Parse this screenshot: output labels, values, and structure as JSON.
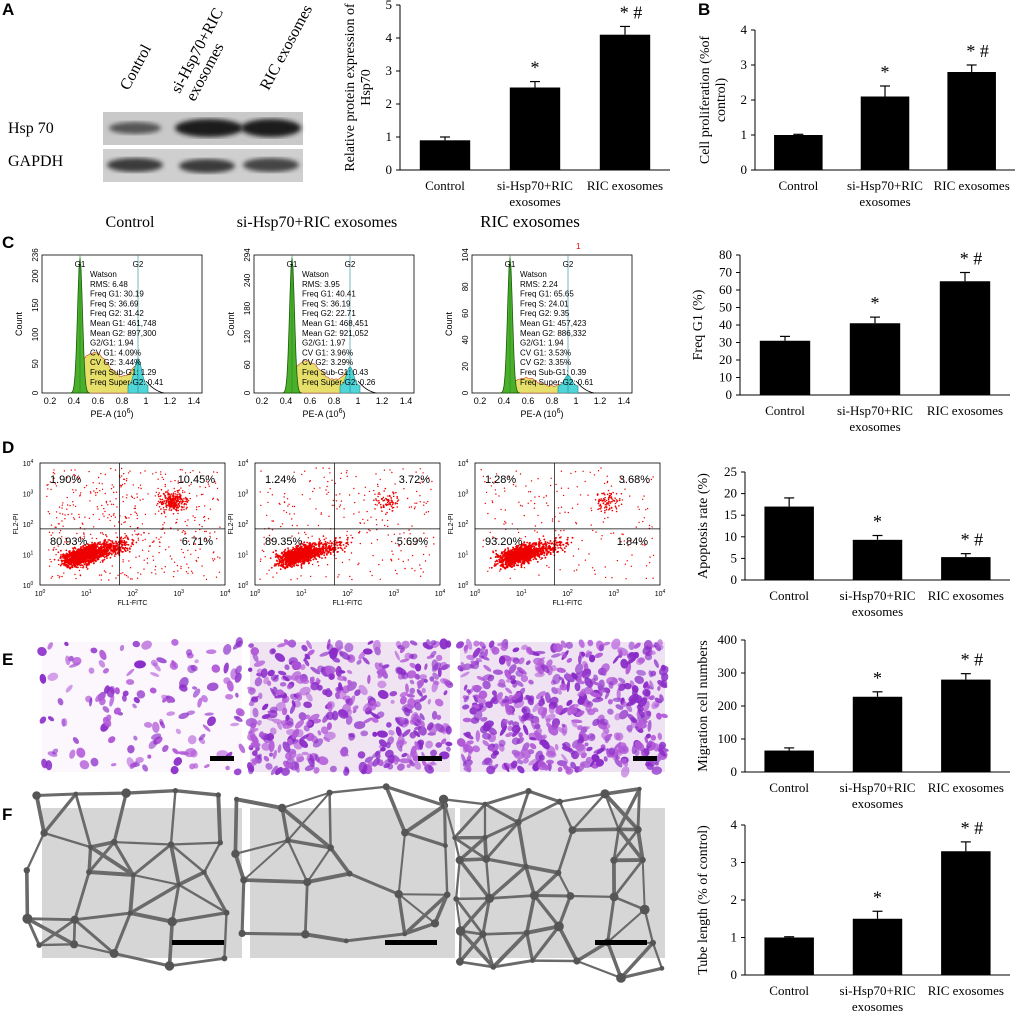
{
  "panels": {
    "A": "A",
    "B": "B",
    "C": "C",
    "D": "D",
    "E": "E",
    "F": "F"
  },
  "groups": [
    "Control",
    "si-Hsp70+RIC exosomes",
    "RIC exosomes"
  ],
  "western_blot": {
    "columns": [
      "Control",
      "si-Hsp70+RIC\nexosomes",
      "RIC exosomes"
    ],
    "rows": [
      "Hsp 70",
      "GAPDH"
    ]
  },
  "flow_cell_cycle": [
    {
      "title": "Control",
      "ymax": "236",
      "yticks": [
        "0",
        "50",
        "100",
        "150",
        "200",
        "236"
      ],
      "peaks": [
        "G1",
        "G2"
      ],
      "stats": [
        "Watson",
        "RMS: 6.48",
        "Freq G1: 30.19",
        "Freq S: 36.69",
        "Freq G2: 31.42",
        "Mean G1: 461,748",
        "Mean G2: 897,300",
        "G2/G1: 1.94",
        "CV G1: 4.09%",
        "CV G2: 3.44%",
        "Freq Sub-G1: 1.29",
        "Freq Super-G2: 0.41"
      ]
    },
    {
      "title": "si-Hsp70+RIC exosomes",
      "ymax": "294",
      "yticks": [
        "0",
        "60",
        "120",
        "180",
        "240",
        "294"
      ],
      "peaks": [
        "G1",
        "G2"
      ],
      "stats": [
        "Watson",
        "RMS: 3.95",
        "Freq G1: 40.41",
        "Freq S: 36.19",
        "Freq G2: 22.71",
        "Mean G1: 468,451",
        "Mean G2: 921,052",
        "G2/G1: 1.97",
        "CV G1: 3.96%",
        "CV G2: 3.29%",
        "Freq Sub-G1: 0.43",
        "Freq Super-G2: 0.26"
      ]
    },
    {
      "title": "RIC exosomes",
      "ymax": "104",
      "yticks": [
        "0",
        "20",
        "40",
        "60",
        "80",
        "104"
      ],
      "peaks": [
        "G1",
        "G2"
      ],
      "marker": "1",
      "stats": [
        "Watson",
        "RMS: 2.24",
        "Freq G1: 65.65",
        "Freq S: 24.01",
        "Freq G2: 9.35",
        "Mean G1: 457,423",
        "Mean G2: 886,332",
        "G2/G1: 1.94",
        "CV G1: 3.53%",
        "CV G2: 3.35%",
        "Freq Sub-G1: 0.39",
        "Freq Super-G2: 0.61"
      ]
    }
  ],
  "flow_common": {
    "ylabel": "Count",
    "xlabel": "PE-A (10",
    "xlabel_exp": "6",
    "xlabel_end": ")",
    "xticks": [
      "0.2",
      "0.4",
      "0.6",
      "0.8",
      "1",
      "1.2",
      "1.4"
    ]
  },
  "apoptosis_plots": [
    {
      "ul": "1.90%",
      "ur": "10.45%",
      "ll": "80.93%",
      "lr": "6.71%"
    },
    {
      "ul": "1.24%",
      "ur": "3.72%",
      "ll": "89.35%",
      "lr": "5.69%"
    },
    {
      "ul": "1.28%",
      "ur": "3.68%",
      "ll": "93.20%",
      "lr": "1.84%"
    }
  ],
  "apoptosis_common": {
    "ylabel": "FL2-PI",
    "xlabel": "FL1-FITC",
    "ticks": [
      "10",
      "10",
      "10",
      "10",
      "10"
    ],
    "exps": [
      "0",
      "1",
      "2",
      "3",
      "4"
    ]
  },
  "chart_data": [
    {
      "type": "bar",
      "panel": "A",
      "categories": [
        "Control",
        "si-Hsp70+RIC\nexosomes",
        "RIC exosomes"
      ],
      "values": [
        0.9,
        2.5,
        4.1
      ],
      "errors": [
        0.1,
        0.18,
        0.25
      ],
      "marks": [
        "",
        "*",
        "* #"
      ],
      "ylabel": "Relative protein expression of\nHsp70",
      "ylim": [
        0,
        5
      ],
      "yticks": [
        0,
        1,
        2,
        3,
        4,
        5
      ]
    },
    {
      "type": "bar",
      "panel": "B",
      "categories": [
        "Control",
        "si-Hsp70+RIC\nexosomes",
        "RIC exosomes"
      ],
      "values": [
        1.0,
        2.1,
        2.8
      ],
      "errors": [
        0.02,
        0.3,
        0.2
      ],
      "marks": [
        "",
        "*",
        "* #"
      ],
      "ylabel": "Cell proliferation (%of\ncontrol)",
      "ylim": [
        0,
        4
      ],
      "yticks": [
        0,
        1,
        2,
        3,
        4
      ]
    },
    {
      "type": "bar",
      "panel": "C",
      "categories": [
        "Control",
        "si-Hsp70+RIC\nexosomes",
        "RIC exosomes"
      ],
      "values": [
        31,
        41,
        65
      ],
      "errors": [
        2.5,
        3.5,
        5
      ],
      "marks": [
        "",
        "*",
        "* #"
      ],
      "ylabel": "Freq G1 (%)",
      "ylim": [
        0,
        80
      ],
      "yticks": [
        0,
        10,
        20,
        30,
        40,
        50,
        60,
        70,
        80
      ]
    },
    {
      "type": "bar",
      "panel": "D",
      "categories": [
        "Control",
        "si-Hsp70+RIC\nexosomes",
        "RIC exosomes"
      ],
      "values": [
        17,
        9.3,
        5.3
      ],
      "errors": [
        2,
        1,
        0.8
      ],
      "marks": [
        "",
        "*",
        "* #"
      ],
      "ylabel": "Apoptosis rate (%)",
      "ylim": [
        0,
        25
      ],
      "yticks": [
        0,
        5,
        10,
        15,
        20,
        25
      ]
    },
    {
      "type": "bar",
      "panel": "E",
      "categories": [
        "Control",
        "si-Hsp70+RIC\nexosomes",
        "RIC exosomes"
      ],
      "values": [
        65,
        228,
        280
      ],
      "errors": [
        8,
        15,
        18
      ],
      "marks": [
        "",
        "*",
        "* #"
      ],
      "ylabel": "Migration cell numbers",
      "ylim": [
        0,
        400
      ],
      "yticks": [
        0,
        100,
        200,
        300,
        400
      ]
    },
    {
      "type": "bar",
      "panel": "F",
      "categories": [
        "Control",
        "si-Hsp70+RIC\nexosomes",
        "RIC exosomes"
      ],
      "values": [
        1.0,
        1.5,
        3.3
      ],
      "errors": [
        0.02,
        0.2,
        0.25
      ],
      "marks": [
        "",
        "*",
        "* #"
      ],
      "ylabel": "Tube length (% of control)",
      "ylim": [
        0,
        4
      ],
      "yticks": [
        0,
        1,
        2,
        3,
        4
      ]
    }
  ]
}
